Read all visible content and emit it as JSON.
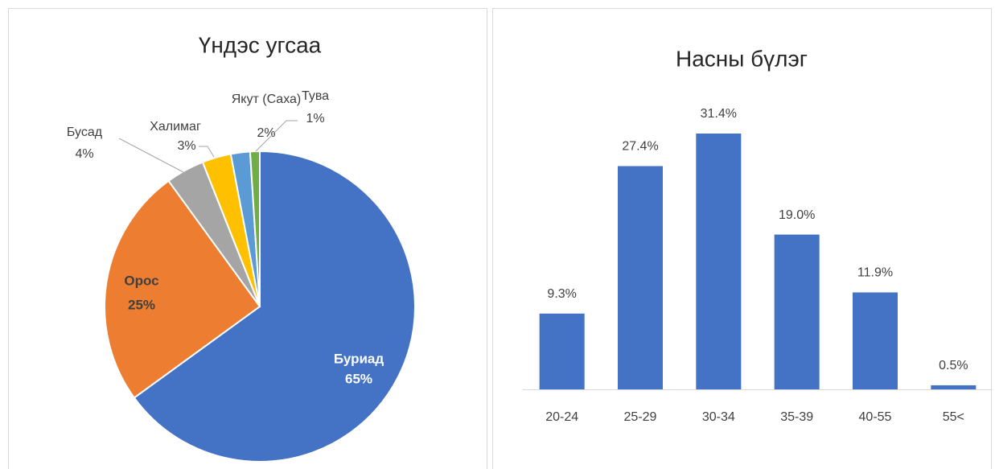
{
  "chart_data": [
    {
      "type": "pie",
      "title": "Үндэс угсаа",
      "categories": [
        "Буриад",
        "Орос",
        "Бусад",
        "Халимаг",
        "Якут (Саха)",
        "Тува"
      ],
      "values": [
        65,
        25,
        4,
        3,
        2,
        1
      ],
      "value_labels": [
        "65%",
        "25%",
        "4%",
        "3%",
        "2%",
        "1%"
      ],
      "colors": [
        "#4472c4",
        "#ed7d31",
        "#a5a5a5",
        "#ffc000",
        "#5b9bd5",
        "#70ad47"
      ]
    },
    {
      "type": "bar",
      "title": "Насны бүлэг",
      "categories": [
        "20-24",
        "25-29",
        "30-34",
        "35-39",
        "40-55",
        "55<"
      ],
      "values": [
        9.3,
        27.4,
        31.4,
        19.0,
        11.9,
        0.5
      ],
      "value_labels": [
        "9.3%",
        "27.4%",
        "31.4%",
        "19.0%",
        "11.9%",
        "0.5%"
      ],
      "color": "#4472c4"
    }
  ]
}
